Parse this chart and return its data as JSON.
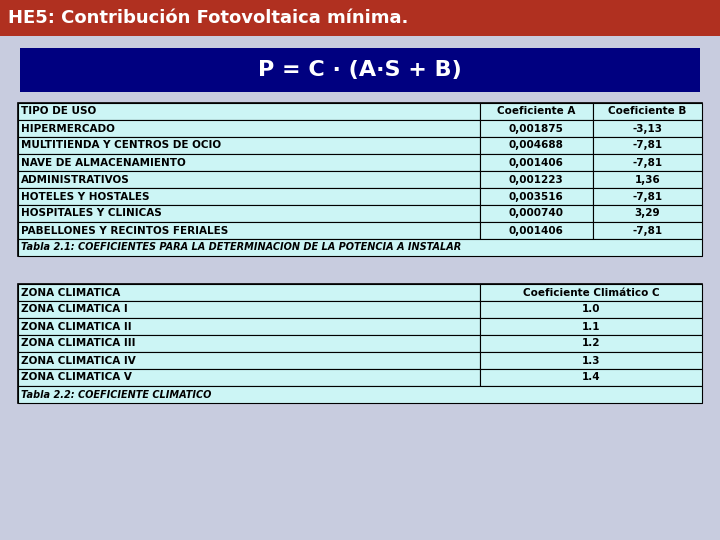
{
  "title": "HE5: Contribución Fotovoltaica mínima.",
  "title_bg": "#b03020",
  "title_fg": "#ffffff",
  "bg_color": "#c8ccdf",
  "formula": "P = C · (A·S + B)",
  "formula_bg": "#000080",
  "formula_fg": "#ffffff",
  "table1_headers": [
    "TIPO DE USO",
    "Coeficiente A",
    "Coeficiente B"
  ],
  "table1_rows": [
    [
      "HIPERMERCADO",
      "0,001875",
      "-3,13"
    ],
    [
      "MULTITIENDA Y CENTROS DE OCIO",
      "0,004688",
      "-7,81"
    ],
    [
      "NAVE DE ALMACENAMIENTO",
      "0,001406",
      "-7,81"
    ],
    [
      "ADMINISTRATIVOS",
      "0,001223",
      "1,36"
    ],
    [
      "HOTELES Y HOSTALES",
      "0,003516",
      "-7,81"
    ],
    [
      "HOSPITALES Y CLINICAS",
      "0,000740",
      "3,29"
    ],
    [
      "PABELLONES Y RECINTOS FERIALES",
      "0,001406",
      "-7,81"
    ]
  ],
  "table1_footer": "Tabla 2.1: COEFICIENTES PARA LA DETERMINACION DE LA POTENCIA A INSTALAR",
  "table1_cell_bg": "#ccf5f5",
  "table1_border": "#000000",
  "table2_headers": [
    "ZONA CLIMATICA",
    "Coeficiente Climático C"
  ],
  "table2_rows": [
    [
      "ZONA CLIMATICA I",
      "1.0"
    ],
    [
      "ZONA CLIMATICA II",
      "1.1"
    ],
    [
      "ZONA CLIMATICA III",
      "1.2"
    ],
    [
      "ZONA CLIMATICA IV",
      "1.3"
    ],
    [
      "ZONA CLIMATICA V",
      "1.4"
    ]
  ],
  "table2_footer": "Tabla 2.2: COEFICIENTE CLIMATICO",
  "table2_cell_bg": "#ccf5f5",
  "table2_border": "#000000"
}
